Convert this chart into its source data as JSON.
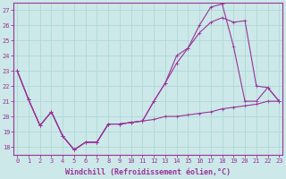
{
  "line1_x": [
    0,
    1,
    2,
    3,
    4,
    5,
    6,
    7,
    8,
    9,
    10,
    11,
    12,
    13,
    14,
    15,
    16,
    17,
    18,
    19,
    20,
    21,
    22,
    23
  ],
  "line1_y": [
    23.0,
    21.1,
    19.4,
    20.3,
    18.7,
    17.8,
    18.3,
    18.3,
    19.5,
    19.5,
    19.6,
    19.7,
    19.8,
    20.0,
    20.0,
    20.1,
    20.2,
    20.3,
    20.5,
    20.6,
    20.7,
    20.8,
    21.0,
    21.0
  ],
  "line2_x": [
    0,
    1,
    2,
    3,
    4,
    5,
    6,
    7,
    8,
    9,
    10,
    11,
    12,
    13,
    14,
    15,
    16,
    17,
    18,
    19,
    20,
    21,
    22,
    23
  ],
  "line2_y": [
    23.0,
    21.1,
    19.4,
    20.3,
    18.7,
    17.8,
    18.3,
    18.3,
    19.5,
    19.5,
    19.6,
    19.7,
    21.0,
    22.2,
    23.5,
    24.5,
    25.5,
    26.2,
    26.5,
    26.2,
    26.3,
    22.0,
    21.9,
    21.0
  ],
  "line3_x": [
    0,
    1,
    2,
    3,
    4,
    5,
    6,
    7,
    8,
    9,
    10,
    11,
    12,
    13,
    14,
    15,
    16,
    17,
    18,
    19,
    20,
    21,
    22,
    23
  ],
  "line3_y": [
    23.0,
    21.1,
    19.4,
    20.3,
    18.7,
    17.8,
    18.3,
    18.3,
    19.5,
    19.5,
    19.6,
    19.7,
    21.0,
    22.2,
    24.0,
    24.5,
    26.0,
    27.2,
    27.4,
    24.6,
    21.0,
    21.0,
    21.9,
    21.0
  ],
  "color": "#993399",
  "bg_color": "#cce8e8",
  "grid_color": "#b0d8d8",
  "xlim": [
    -0.3,
    23.3
  ],
  "ylim": [
    17.5,
    27.5
  ],
  "yticks": [
    18,
    19,
    20,
    21,
    22,
    23,
    24,
    25,
    26,
    27
  ],
  "xticks": [
    0,
    1,
    2,
    3,
    4,
    5,
    6,
    7,
    8,
    9,
    10,
    11,
    12,
    13,
    14,
    15,
    16,
    17,
    18,
    19,
    20,
    21,
    22,
    23
  ],
  "xlabel": "Windchill (Refroidissement éolien,°C)",
  "tick_fontsize": 5.0,
  "label_fontsize": 6.0
}
